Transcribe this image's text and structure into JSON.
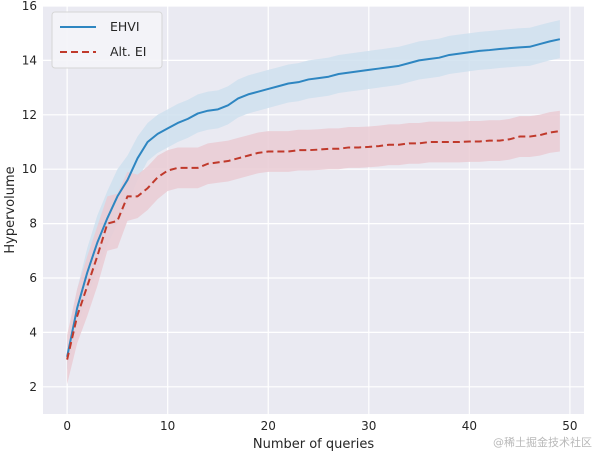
{
  "chart_data": {
    "type": "line",
    "title": "",
    "xlabel": "Number of queries",
    "ylabel": "Hypervolume",
    "xlim": [
      -2.4,
      51.4
    ],
    "ylim": [
      1,
      16
    ],
    "xticks": [
      0,
      10,
      20,
      30,
      40,
      50
    ],
    "yticks": [
      2,
      4,
      6,
      8,
      10,
      12,
      14,
      16
    ],
    "xtick_labels": [
      "0",
      "10",
      "20",
      "30",
      "40",
      "50"
    ],
    "ytick_labels": [
      "2",
      "4",
      "6",
      "8",
      "10",
      "12",
      "14",
      "16"
    ],
    "grid": true,
    "legend_position": "top-left",
    "colors": {
      "plot_background": "#eaeaf2",
      "grid": "#ffffff",
      "EHVI": "#2e86c1",
      "EHVI_band": "#cfe0ee",
      "Alt. EI": "#c0392b",
      "Alt. EI_band": "#eacbd3",
      "text": "#262626"
    },
    "x": [
      0,
      1,
      2,
      3,
      4,
      5,
      6,
      7,
      8,
      9,
      10,
      11,
      12,
      13,
      14,
      15,
      16,
      17,
      18,
      19,
      20,
      21,
      22,
      23,
      24,
      25,
      26,
      27,
      28,
      29,
      30,
      31,
      32,
      33,
      34,
      35,
      36,
      37,
      38,
      39,
      40,
      41,
      42,
      43,
      44,
      45,
      46,
      47,
      48,
      49
    ],
    "series": [
      {
        "name": "EHVI",
        "style": "solid",
        "values": [
          3.1,
          4.9,
          6.2,
          7.3,
          8.2,
          9.0,
          9.6,
          10.4,
          11.0,
          11.3,
          11.5,
          11.7,
          11.85,
          12.05,
          12.15,
          12.2,
          12.35,
          12.6,
          12.75,
          12.85,
          12.95,
          13.05,
          13.15,
          13.2,
          13.3,
          13.35,
          13.4,
          13.5,
          13.55,
          13.6,
          13.65,
          13.7,
          13.75,
          13.8,
          13.9,
          14.0,
          14.05,
          14.1,
          14.2,
          14.25,
          14.3,
          14.35,
          14.38,
          14.42,
          14.45,
          14.48,
          14.5,
          14.6,
          14.7,
          14.78
        ],
        "lower": [
          2.6,
          4.2,
          5.3,
          6.3,
          7.2,
          8.0,
          8.7,
          9.6,
          10.3,
          10.6,
          10.8,
          11.0,
          11.15,
          11.35,
          11.45,
          11.5,
          11.65,
          11.9,
          12.05,
          12.15,
          12.25,
          12.35,
          12.45,
          12.5,
          12.6,
          12.65,
          12.7,
          12.8,
          12.85,
          12.9,
          12.95,
          13.0,
          13.05,
          13.1,
          13.2,
          13.3,
          13.35,
          13.4,
          13.5,
          13.55,
          13.6,
          13.65,
          13.68,
          13.72,
          13.75,
          13.78,
          13.8,
          13.9,
          14.0,
          14.08
        ],
        "upper": [
          3.6,
          5.6,
          7.1,
          8.3,
          9.2,
          10.0,
          10.5,
          11.2,
          11.7,
          12.0,
          12.2,
          12.4,
          12.55,
          12.75,
          12.85,
          12.9,
          13.05,
          13.3,
          13.45,
          13.55,
          13.65,
          13.75,
          13.85,
          13.9,
          14.0,
          14.05,
          14.1,
          14.2,
          14.25,
          14.3,
          14.35,
          14.4,
          14.45,
          14.5,
          14.6,
          14.7,
          14.75,
          14.8,
          14.9,
          14.95,
          15.0,
          15.05,
          15.08,
          15.12,
          15.15,
          15.18,
          15.2,
          15.3,
          15.4,
          15.48
        ]
      },
      {
        "name": "Alt. EI",
        "style": "dashed",
        "values": [
          3.0,
          4.6,
          5.7,
          6.8,
          8.0,
          8.1,
          9.0,
          9.0,
          9.3,
          9.7,
          9.95,
          10.05,
          10.05,
          10.05,
          10.2,
          10.25,
          10.3,
          10.4,
          10.5,
          10.6,
          10.65,
          10.65,
          10.65,
          10.7,
          10.7,
          10.72,
          10.75,
          10.75,
          10.8,
          10.8,
          10.82,
          10.85,
          10.9,
          10.9,
          10.95,
          10.95,
          11.0,
          11.0,
          11.0,
          11.0,
          11.02,
          11.02,
          11.05,
          11.05,
          11.1,
          11.2,
          11.2,
          11.25,
          11.35,
          11.4
        ],
        "lower": [
          2.1,
          3.6,
          4.6,
          5.7,
          7.0,
          7.1,
          8.1,
          8.2,
          8.5,
          8.9,
          9.2,
          9.3,
          9.3,
          9.3,
          9.45,
          9.5,
          9.55,
          9.65,
          9.75,
          9.85,
          9.9,
          9.9,
          9.9,
          9.95,
          9.95,
          9.97,
          10.0,
          10.0,
          10.05,
          10.05,
          10.07,
          10.1,
          10.15,
          10.15,
          10.2,
          10.2,
          10.25,
          10.25,
          10.25,
          10.25,
          10.27,
          10.27,
          10.3,
          10.3,
          10.35,
          10.45,
          10.45,
          10.5,
          10.6,
          10.65
        ],
        "upper": [
          3.9,
          5.6,
          6.8,
          7.9,
          9.0,
          9.1,
          9.9,
          9.8,
          10.1,
          10.5,
          10.7,
          10.8,
          10.8,
          10.8,
          10.95,
          11.0,
          11.05,
          11.15,
          11.25,
          11.35,
          11.4,
          11.4,
          11.4,
          11.45,
          11.45,
          11.47,
          11.5,
          11.5,
          11.55,
          11.55,
          11.57,
          11.6,
          11.65,
          11.65,
          11.7,
          11.7,
          11.75,
          11.75,
          11.75,
          11.75,
          11.77,
          11.77,
          11.8,
          11.8,
          11.85,
          11.95,
          11.95,
          12.0,
          12.1,
          12.15
        ]
      }
    ]
  },
  "watermark": "@稀土掘金技术社区"
}
